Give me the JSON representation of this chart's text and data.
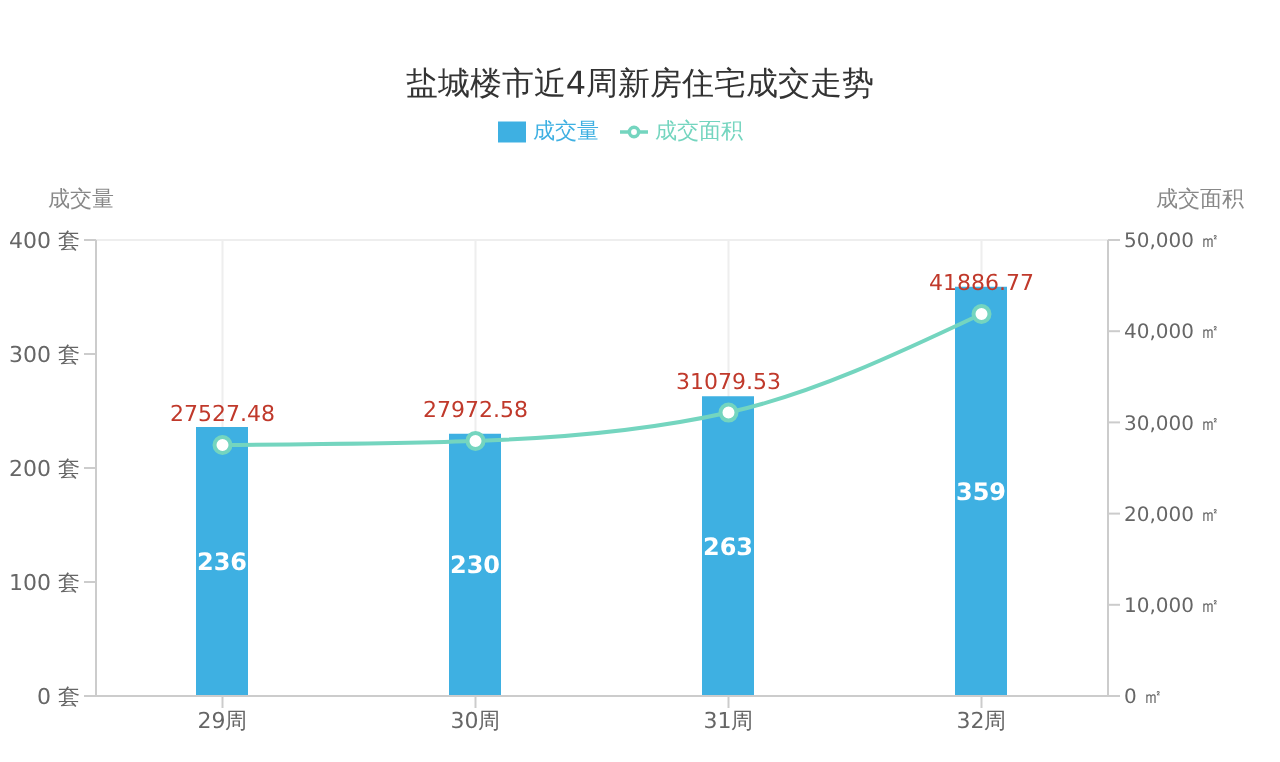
{
  "chart_data": {
    "type": "bar",
    "title": "盐城楼市近4周新房住宅成交走势",
    "ylabel": "成交量",
    "y2label": "成交面积",
    "categories": [
      "29周",
      "30周",
      "31周",
      "32周"
    ],
    "series": [
      {
        "name": "成交量",
        "color": "#3eb0e2",
        "values": [
          236,
          230,
          263,
          359
        ]
      },
      {
        "name": "成交面积",
        "type": "line",
        "axis": "y2",
        "color": "#74d5bf",
        "values": [
          27527.48,
          27972.58,
          31079.53,
          41886.77
        ]
      }
    ],
    "ylim": [
      0,
      400
    ],
    "yticks": [
      {
        "value": 0,
        "label": "0 套"
      },
      {
        "value": 100,
        "label": "100 套"
      },
      {
        "value": 200,
        "label": "200 套"
      },
      {
        "value": 300,
        "label": "300 套"
      },
      {
        "value": 400,
        "label": "400 套"
      }
    ],
    "y2lim": [
      0,
      50000
    ],
    "y2ticks": [
      {
        "value": 0,
        "label": "0 ㎡"
      },
      {
        "value": 10000,
        "label": "10,000 ㎡"
      },
      {
        "value": 20000,
        "label": "20,000 ㎡"
      },
      {
        "value": 30000,
        "label": "30,000 ㎡"
      },
      {
        "value": 40000,
        "label": "40,000 ㎡"
      },
      {
        "value": 50000,
        "label": "50,000 ㎡"
      }
    ],
    "grid": true,
    "legend": "top",
    "marker": "circle",
    "data_labels": true
  }
}
